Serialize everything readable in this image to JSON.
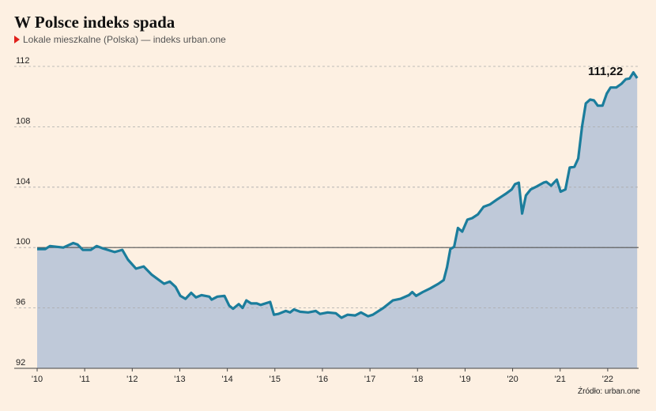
{
  "chart_data": {
    "type": "area",
    "title": "W Polsce indeks spada",
    "subtitle": "Lokale mieszkalne (Polska) — indeks urban.one",
    "source": "Źródło: urban.one",
    "annotation": "111,22",
    "color": "#1b7d9c",
    "fill": "#bfc9d9",
    "baseline": 100,
    "grid": true,
    "xlim": [
      2010,
      2022.65
    ],
    "xticks": [
      {
        "value": 2010,
        "label": "'10"
      },
      {
        "value": 2011,
        "label": "'11"
      },
      {
        "value": 2012,
        "label": "'12"
      },
      {
        "value": 2013,
        "label": "'13"
      },
      {
        "value": 2014,
        "label": "'14"
      },
      {
        "value": 2015,
        "label": "'15"
      },
      {
        "value": 2016,
        "label": "'16"
      },
      {
        "value": 2017,
        "label": "'17"
      },
      {
        "value": 2018,
        "label": "'18"
      },
      {
        "value": 2019,
        "label": "'19"
      },
      {
        "value": 2020,
        "label": "'20"
      },
      {
        "value": 2021,
        "label": "'21"
      },
      {
        "value": 2022,
        "label": "'22"
      }
    ],
    "ylim": [
      92,
      112
    ],
    "yticks": [
      92,
      96,
      100,
      104,
      108,
      112
    ],
    "x": [
      2010.0,
      2010.17,
      2010.27,
      2010.55,
      2010.76,
      2010.85,
      2010.96,
      2011.13,
      2011.25,
      2011.38,
      2011.63,
      2011.79,
      2011.91,
      2012.08,
      2012.24,
      2012.41,
      2012.54,
      2012.67,
      2012.79,
      2012.91,
      2013.01,
      2013.12,
      2013.24,
      2013.34,
      2013.46,
      2013.62,
      2013.67,
      2013.79,
      2013.94,
      2014.04,
      2014.12,
      2014.24,
      2014.32,
      2014.4,
      2014.5,
      2014.62,
      2014.7,
      2014.9,
      2014.98,
      2015.07,
      2015.23,
      2015.32,
      2015.4,
      2015.53,
      2015.7,
      2015.86,
      2015.95,
      2016.11,
      2016.28,
      2016.4,
      2016.53,
      2016.69,
      2016.81,
      2016.96,
      2017.06,
      2017.28,
      2017.48,
      2017.64,
      2017.82,
      2017.89,
      2017.97,
      2018.11,
      2018.27,
      2018.44,
      2018.55,
      2018.62,
      2018.69,
      2018.77,
      2018.85,
      2018.94,
      2019.05,
      2019.15,
      2019.27,
      2019.39,
      2019.52,
      2019.68,
      2019.85,
      2019.98,
      2020.05,
      2020.13,
      2020.2,
      2020.28,
      2020.38,
      2020.51,
      2020.65,
      2020.71,
      2020.81,
      2020.93,
      2021.01,
      2021.11,
      2021.2,
      2021.3,
      2021.38,
      2021.46,
      2021.54,
      2021.63,
      2021.71,
      2021.79,
      2021.89,
      2021.98,
      2022.06,
      2022.18,
      2022.29,
      2022.38,
      2022.46,
      2022.54,
      2022.62
    ],
    "values": [
      99.9,
      99.9,
      100.1,
      100.0,
      100.3,
      100.2,
      99.85,
      99.85,
      100.1,
      99.95,
      99.7,
      99.85,
      99.2,
      98.6,
      98.75,
      98.2,
      97.9,
      97.6,
      97.75,
      97.4,
      96.8,
      96.6,
      97.0,
      96.7,
      96.85,
      96.75,
      96.55,
      96.75,
      96.8,
      96.15,
      95.95,
      96.25,
      96.0,
      96.5,
      96.3,
      96.3,
      96.2,
      96.4,
      95.55,
      95.6,
      95.8,
      95.7,
      95.9,
      95.75,
      95.7,
      95.8,
      95.6,
      95.7,
      95.65,
      95.35,
      95.55,
      95.5,
      95.7,
      95.45,
      95.55,
      96.0,
      96.5,
      96.6,
      96.85,
      97.05,
      96.8,
      97.05,
      97.3,
      97.6,
      97.85,
      98.7,
      99.9,
      100.05,
      101.3,
      101.05,
      101.85,
      101.95,
      102.2,
      102.7,
      102.85,
      103.2,
      103.55,
      103.85,
      104.2,
      104.3,
      102.25,
      103.45,
      103.85,
      104.05,
      104.3,
      104.35,
      104.1,
      104.5,
      103.7,
      103.85,
      105.3,
      105.35,
      105.9,
      108.0,
      109.55,
      109.8,
      109.75,
      109.4,
      109.4,
      110.2,
      110.6,
      110.6,
      110.85,
      111.15,
      111.2,
      111.6,
      111.22
    ]
  }
}
